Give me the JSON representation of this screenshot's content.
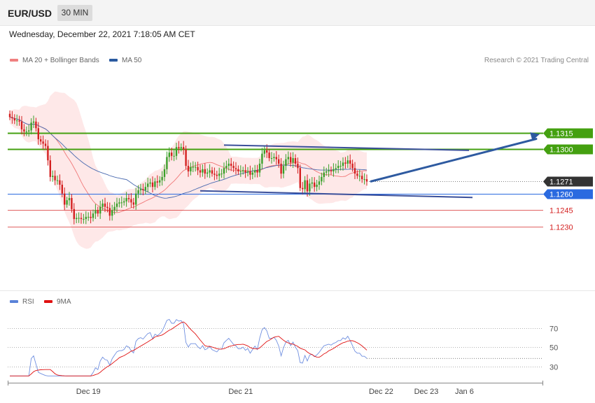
{
  "header": {
    "symbol": "EUR/USD",
    "timeframe": "30 MIN"
  },
  "datetime": "Wednesday, December 22, 2021 7:18:05 AM CET",
  "legend_main": [
    {
      "label": "MA 20 + Bollinger Bands",
      "color": "#f08080"
    },
    {
      "label": "MA 50",
      "color": "#2a5aa0"
    }
  ],
  "legend_rsi": [
    {
      "label": "RSI",
      "color": "#5a82d8"
    },
    {
      "label": "9MA",
      "color": "#e01010"
    }
  ],
  "copyright": "Research © 2021 Trading Central",
  "colors": {
    "up": "#3aa02a",
    "down": "#d42020",
    "resistance": "#44a010",
    "pivot_support": "#2a6ae0",
    "support": "#d42020",
    "last": "#333333",
    "arrow": "#2e5aa0"
  },
  "chart_data": {
    "type": "candlestick",
    "price_axis": {
      "min": 1.122,
      "max": 1.134
    },
    "levels": [
      {
        "label": "1.1315",
        "value": 1.1315,
        "kind": "resistance"
      },
      {
        "label": "1.1300",
        "value": 1.13,
        "kind": "resistance"
      },
      {
        "label": "1.1271",
        "value": 1.1271,
        "kind": "last"
      },
      {
        "label": "1.1260",
        "value": 1.126,
        "kind": "pivot"
      },
      {
        "label": "1.1245",
        "value": 1.1245,
        "kind": "support"
      },
      {
        "label": "1.1230",
        "value": 1.123,
        "kind": "support"
      }
    ],
    "close": [
      1.1329,
      1.1328,
      1.1326,
      1.1326,
      1.1325,
      1.1318,
      1.1316,
      1.1316,
      1.1317,
      1.1324,
      1.1325,
      1.1319,
      1.1309,
      1.1307,
      1.1305,
      1.1303,
      1.129,
      1.1275,
      1.1276,
      1.1272,
      1.1272,
      1.1268,
      1.126,
      1.125,
      1.1254,
      1.1256,
      1.1246,
      1.1237,
      1.1238,
      1.1238,
      1.1237,
      1.1237,
      1.1239,
      1.1239,
      1.1238,
      1.1242,
      1.1245,
      1.1242,
      1.1248,
      1.1251,
      1.1248,
      1.1247,
      1.124,
      1.1245,
      1.1248,
      1.1251,
      1.1252,
      1.1252,
      1.1253,
      1.1256,
      1.1255,
      1.1252,
      1.125,
      1.126,
      1.1263,
      1.1264,
      1.1263,
      1.1266,
      1.1269,
      1.127,
      1.1266,
      1.1271,
      1.127,
      1.1272,
      1.1275,
      1.1282,
      1.1293,
      1.1297,
      1.1294,
      1.1294,
      1.1302,
      1.1301,
      1.1302,
      1.13,
      1.1285,
      1.128,
      1.1284,
      1.1284,
      1.1284,
      1.1281,
      1.1279,
      1.1282,
      1.1278,
      1.1279,
      1.1281,
      1.1278,
      1.1277,
      1.1276,
      1.1278,
      1.1278,
      1.1283,
      1.1285,
      1.1287,
      1.1285,
      1.1283,
      1.1282,
      1.128,
      1.128,
      1.1281,
      1.1279,
      1.128,
      1.1277,
      1.1279,
      1.1281,
      1.1279,
      1.1287,
      1.1296,
      1.1299,
      1.1297,
      1.1292,
      1.1292,
      1.1293,
      1.1291,
      1.1287,
      1.1278,
      1.1285,
      1.1291,
      1.1293,
      1.1288,
      1.1292,
      1.1287,
      1.1283,
      1.1265,
      1.1264,
      1.1272,
      1.1262,
      1.1269,
      1.127,
      1.1266,
      1.1268,
      1.1271,
      1.1275,
      1.1279,
      1.128,
      1.1281,
      1.128,
      1.1282,
      1.1283,
      1.1285,
      1.1285,
      1.1288,
      1.1287,
      1.129,
      1.1287,
      1.1283,
      1.1278,
      1.1276,
      1.1276,
      1.1273,
      1.1273,
      1.1271
    ],
    "rsi": {
      "ticks": [
        70,
        50,
        30
      ],
      "range": [
        18,
        80
      ]
    },
    "x_labels": [
      {
        "label": "Dec 19",
        "index": 33
      },
      {
        "label": "Dec 21",
        "index": 97
      },
      {
        "label": "Dec 22",
        "index": 156
      },
      {
        "label": "Dec 23",
        "index": 175
      },
      {
        "label": "Jan 6",
        "index": 191
      }
    ]
  }
}
